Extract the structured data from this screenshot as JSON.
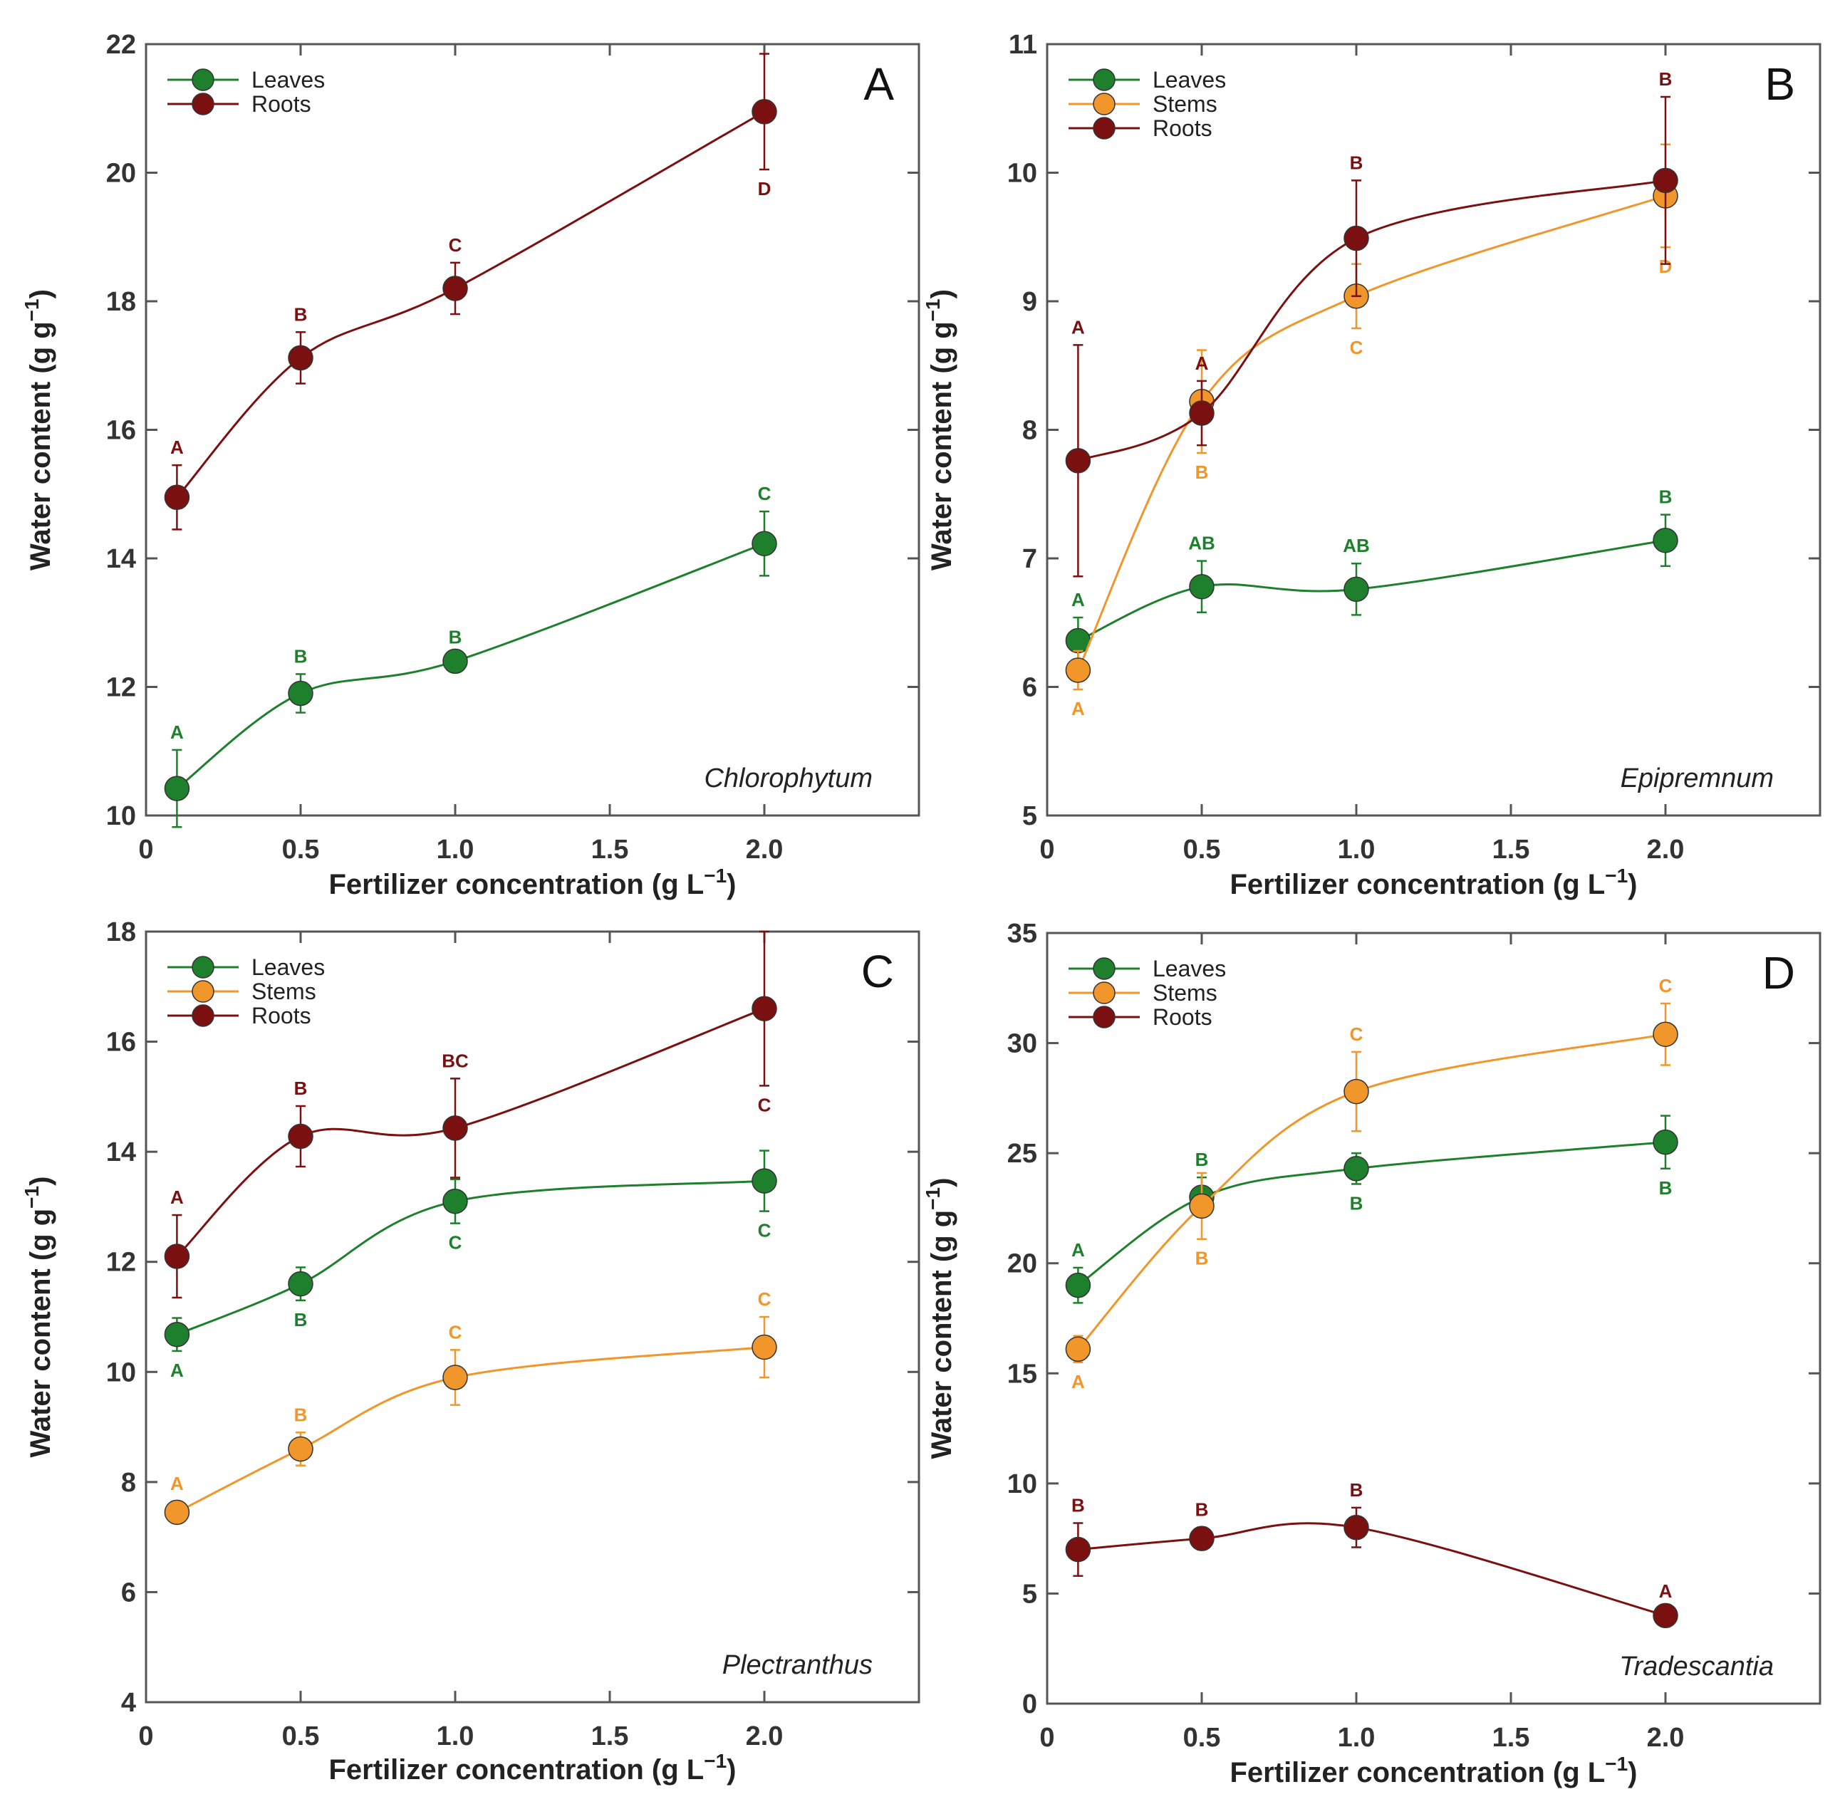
{
  "colors": {
    "Leaves": "#1e7f2d",
    "Stems": "#f0962a",
    "Roots": "#7b1010"
  },
  "chart_data": [
    {
      "type": "line",
      "panel": "A",
      "species": "Chlorophytum",
      "xlabel": "Fertilizer concentration (g L",
      "xlabel_sup": "−1",
      "xlabel_end": ")",
      "ylabel": "Water content (g g",
      "ylabel_sup": "−1",
      "ylabel_end": ")",
      "xlim": [
        0,
        2.5
      ],
      "ylim": [
        10,
        22
      ],
      "xticks": [
        0,
        0.5,
        1.0,
        1.5,
        2.0
      ],
      "xtick_labels": [
        "0",
        "0.5",
        "1.0",
        "1.5",
        "2.0"
      ],
      "yticks": [
        10,
        12,
        14,
        16,
        18,
        20,
        22
      ],
      "ytick_labels": [
        "10",
        "12",
        "14",
        "16",
        "18",
        "20",
        "22"
      ],
      "legend_position": "top-left",
      "x": [
        0.1,
        0.5,
        1.0,
        2.0
      ],
      "series": [
        {
          "name": "Leaves",
          "values": [
            10.42,
            11.9,
            12.4,
            14.23
          ],
          "errors": [
            0.6,
            0.3,
            0.1,
            0.5
          ],
          "letters": [
            "A",
            "B",
            "B",
            "C"
          ],
          "letter_pos": [
            "above",
            "above",
            "above",
            "above"
          ]
        },
        {
          "name": "Roots",
          "values": [
            14.95,
            17.12,
            18.2,
            20.95
          ],
          "errors": [
            0.5,
            0.4,
            0.4,
            0.9
          ],
          "letters": [
            "A",
            "B",
            "C",
            "D"
          ],
          "letter_pos": [
            "above",
            "above",
            "above",
            "below"
          ]
        }
      ]
    },
    {
      "type": "line",
      "panel": "B",
      "species": "Epipremnum",
      "xlabel": "Fertilizer concentration (g L",
      "xlabel_sup": "−1",
      "xlabel_end": ")",
      "ylabel": "Water content (g g",
      "ylabel_sup": "−1",
      "ylabel_end": ")",
      "xlim": [
        0,
        2.5
      ],
      "ylim": [
        5,
        11
      ],
      "xticks": [
        0,
        0.5,
        1.0,
        1.5,
        2.0
      ],
      "xtick_labels": [
        "0",
        "0.5",
        "1.0",
        "1.5",
        "2.0"
      ],
      "yticks": [
        5,
        6,
        7,
        8,
        9,
        10,
        11
      ],
      "ytick_labels": [
        "5",
        "6",
        "7",
        "8",
        "9",
        "10",
        "11"
      ],
      "legend_position": "top-left",
      "x": [
        0.1,
        0.5,
        1.0,
        2.0
      ],
      "series": [
        {
          "name": "Leaves",
          "values": [
            6.36,
            6.78,
            6.76,
            7.14
          ],
          "errors": [
            0.18,
            0.2,
            0.2,
            0.2
          ],
          "letters": [
            "A",
            "AB",
            "AB",
            "B"
          ],
          "letter_pos": [
            "above",
            "above",
            "above",
            "above"
          ]
        },
        {
          "name": "Stems",
          "values": [
            6.13,
            8.22,
            9.04,
            9.82
          ],
          "errors": [
            0.15,
            0.4,
            0.25,
            0.4
          ],
          "letters": [
            "A",
            "B",
            "C",
            "D"
          ],
          "letter_pos": [
            "below",
            "below",
            "below",
            "below"
          ]
        },
        {
          "name": "Roots",
          "values": [
            7.76,
            8.13,
            9.49,
            9.94
          ],
          "errors": [
            0.9,
            0.25,
            0.45,
            0.65
          ],
          "letters": [
            "A",
            "A",
            "B",
            "B"
          ],
          "letter_pos": [
            "above",
            "above",
            "above",
            "above"
          ]
        }
      ]
    },
    {
      "type": "line",
      "panel": "C",
      "species": "Plectranthus",
      "xlabel": "Fertilizer concentration (g L",
      "xlabel_sup": "−1",
      "xlabel_end": ")",
      "ylabel": "Water content (g g",
      "ylabel_sup": "−1",
      "ylabel_end": ")",
      "xlim": [
        0,
        2.5
      ],
      "ylim": [
        4,
        18
      ],
      "xticks": [
        0,
        0.5,
        1.0,
        1.5,
        2.0
      ],
      "xtick_labels": [
        "0",
        "0.5",
        "1.0",
        "1.5",
        "2.0"
      ],
      "yticks": [
        4,
        6,
        8,
        10,
        12,
        14,
        16,
        18
      ],
      "ytick_labels": [
        "4",
        "6",
        "8",
        "10",
        "12",
        "14",
        "16",
        "18"
      ],
      "legend_position": "top-left",
      "x": [
        0.1,
        0.5,
        1.0,
        2.0
      ],
      "series": [
        {
          "name": "Leaves",
          "values": [
            10.68,
            11.6,
            13.1,
            13.47
          ],
          "errors": [
            0.3,
            0.3,
            0.4,
            0.55
          ],
          "letters": [
            "A",
            "B",
            "C",
            "C"
          ],
          "letter_pos": [
            "below",
            "below",
            "below",
            "below"
          ]
        },
        {
          "name": "Stems",
          "values": [
            7.45,
            8.6,
            9.9,
            10.45
          ],
          "errors": [
            0.2,
            0.3,
            0.5,
            0.55
          ],
          "letters": [
            "A",
            "B",
            "C",
            "C"
          ],
          "letter_pos": [
            "above",
            "above",
            "above",
            "above"
          ]
        },
        {
          "name": "Roots",
          "values": [
            12.1,
            14.28,
            14.43,
            16.6
          ],
          "errors": [
            0.75,
            0.55,
            0.9,
            1.4
          ],
          "letters": [
            "A",
            "B",
            "BC",
            "C"
          ],
          "letter_pos": [
            "above",
            "above",
            "above",
            "below"
          ]
        }
      ]
    },
    {
      "type": "line",
      "panel": "D",
      "species": "Tradescantia",
      "xlabel": "Fertilizer concentration (g L",
      "xlabel_sup": "−1",
      "xlabel_end": ")",
      "ylabel": "Water content (g g",
      "ylabel_sup": "−1",
      "ylabel_end": ")",
      "xlim": [
        0,
        2.5
      ],
      "ylim": [
        0,
        35
      ],
      "xticks": [
        0,
        0.5,
        1.0,
        1.5,
        2.0
      ],
      "xtick_labels": [
        "0",
        "0.5",
        "1.0",
        "1.5",
        "2.0"
      ],
      "yticks": [
        0,
        5,
        10,
        15,
        20,
        25,
        30,
        35
      ],
      "ytick_labels": [
        "0",
        "5",
        "10",
        "15",
        "20",
        "25",
        "30",
        "35"
      ],
      "legend_position": "top-left",
      "x": [
        0.1,
        0.5,
        1.0,
        2.0
      ],
      "series": [
        {
          "name": "Leaves",
          "values": [
            19.0,
            23.0,
            24.3,
            25.5
          ],
          "errors": [
            0.8,
            0.9,
            0.7,
            1.2
          ],
          "letters": [
            "A",
            "B",
            "B",
            "B"
          ],
          "letter_pos": [
            "above",
            "above",
            "below",
            "below"
          ]
        },
        {
          "name": "Stems",
          "values": [
            16.1,
            22.6,
            27.8,
            30.4
          ],
          "errors": [
            0.6,
            1.5,
            1.8,
            1.4
          ],
          "letters": [
            "A",
            "B",
            "C",
            "C"
          ],
          "letter_pos": [
            "below",
            "below",
            "above",
            "above"
          ]
        },
        {
          "name": "Roots",
          "values": [
            7.0,
            7.5,
            8.0,
            4.0
          ],
          "errors": [
            1.2,
            0.5,
            0.9,
            0.3
          ],
          "letters": [
            "B",
            "B",
            "B",
            "A"
          ],
          "letter_pos": [
            "above",
            "above",
            "above",
            "above"
          ]
        }
      ]
    }
  ]
}
